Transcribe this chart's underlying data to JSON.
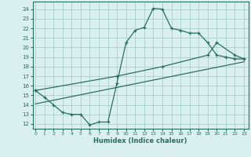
{
  "xlabel": "Humidex (Indice chaleur)",
  "bg_color": "#daf0ee",
  "grid_color": "#b0d4d0",
  "line_color": "#2a6e63",
  "x_ticks": [
    0,
    1,
    2,
    3,
    4,
    5,
    6,
    7,
    8,
    9,
    10,
    11,
    12,
    13,
    14,
    15,
    16,
    17,
    18,
    19,
    20,
    21,
    22,
    23
  ],
  "y_ticks": [
    12,
    13,
    14,
    15,
    16,
    17,
    18,
    19,
    20,
    21,
    22,
    23,
    24
  ],
  "xlim": [
    -0.3,
    23.5
  ],
  "ylim": [
    11.5,
    24.8
  ],
  "line1_x": [
    0,
    1,
    2,
    3,
    4,
    5,
    6,
    7,
    8,
    9,
    10,
    11,
    12,
    13,
    14,
    15,
    16,
    17,
    18,
    19,
    20,
    21,
    22,
    23
  ],
  "line1_y": [
    15.5,
    14.8,
    14.0,
    13.2,
    13.0,
    13.0,
    11.9,
    12.2,
    12.2,
    16.3,
    20.5,
    21.8,
    22.1,
    24.1,
    24.0,
    22.0,
    21.8,
    21.5,
    21.5,
    20.5,
    19.2,
    19.0,
    18.8,
    18.8
  ],
  "line2_x": [
    0,
    9,
    14,
    19,
    20,
    22,
    23
  ],
  "line2_y": [
    15.5,
    17.0,
    18.0,
    19.2,
    20.5,
    19.2,
    18.8
  ],
  "line3_x": [
    0,
    23
  ],
  "line3_y": [
    14.1,
    18.5
  ]
}
